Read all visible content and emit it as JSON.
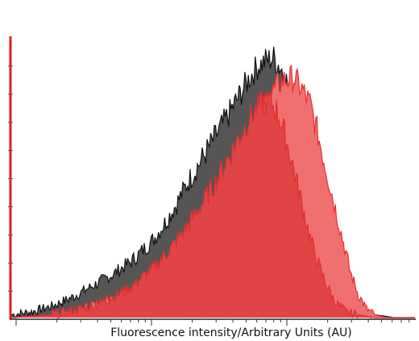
{
  "chart_data": {
    "type": "area",
    "xlabel": "Fluorescence intensity/Arbitrary Units (AU)",
    "ylabel": "",
    "title": "",
    "xlim": [
      0,
      100
    ],
    "ylim": [
      0,
      100
    ],
    "x_scale": "log",
    "grid": false,
    "legend": "none",
    "series": [
      {
        "color": "#555555",
        "stroke": "#111111",
        "x": [
          0,
          5,
          10,
          15,
          20,
          25,
          30,
          35,
          38,
          41,
          44,
          47,
          50,
          53,
          55,
          57,
          59,
          61,
          63,
          65,
          67,
          69,
          71,
          73,
          75,
          77,
          79,
          81,
          83,
          85,
          87,
          90,
          95,
          100
        ],
        "y": [
          1,
          2,
          4,
          7,
          11,
          15,
          20,
          27,
          33,
          40,
          48,
          55,
          62,
          69,
          74,
          79,
          84,
          88,
          90,
          91,
          87,
          80,
          70,
          57,
          44,
          31,
          20,
          12,
          7,
          4,
          2,
          1,
          0,
          0
        ]
      },
      {
        "color": "#f07070",
        "stroke": "#e83030",
        "x": [
          0,
          10,
          20,
          30,
          35,
          40,
          45,
          50,
          54,
          58,
          61,
          64,
          67,
          70,
          72,
          74,
          76,
          78,
          80,
          82,
          84,
          86,
          88,
          90,
          93,
          96,
          100
        ],
        "y": [
          0,
          1,
          4,
          10,
          15,
          22,
          30,
          40,
          50,
          60,
          70,
          78,
          83,
          84,
          80,
          75,
          64,
          52,
          40,
          28,
          16,
          8,
          3,
          1,
          0,
          0,
          0
        ]
      },
      {
        "color": "#e04444",
        "stroke": "#e03030",
        "x": [
          0,
          10,
          20,
          25,
          30,
          35,
          40,
          45,
          50,
          53,
          56,
          59,
          62,
          64,
          66,
          68,
          70,
          72,
          74,
          77,
          80,
          83,
          86,
          90,
          100
        ],
        "y": [
          0,
          1,
          4,
          7,
          11,
          17,
          25,
          35,
          46,
          54,
          62,
          70,
          75,
          76,
          72,
          63,
          52,
          40,
          28,
          15,
          6,
          2,
          1,
          0,
          0
        ]
      }
    ]
  }
}
